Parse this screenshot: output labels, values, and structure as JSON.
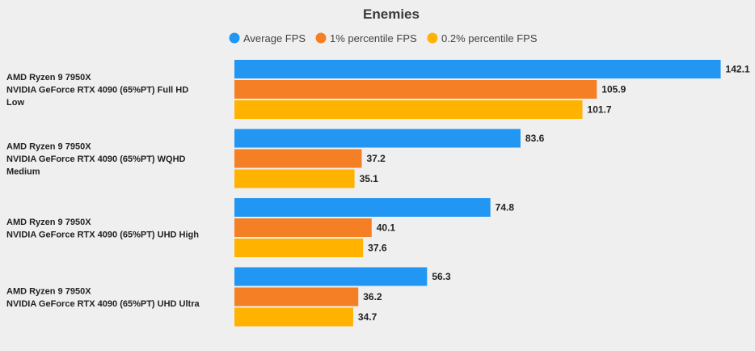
{
  "chart_data": {
    "type": "bar",
    "orientation": "horizontal",
    "title": "Enemies",
    "legend_position": "top",
    "categories": [
      [
        "AMD Ryzen 9 7950X",
        "NVIDIA GeForce RTX 4090 (65%PT) Full HD",
        "Low"
      ],
      [
        "AMD Ryzen 9 7950X",
        "NVIDIA GeForce RTX 4090 (65%PT) WQHD",
        "Medium"
      ],
      [
        "AMD Ryzen 9 7950X",
        "NVIDIA GeForce RTX 4090 (65%PT) UHD High"
      ],
      [
        "AMD Ryzen 9 7950X",
        "NVIDIA GeForce RTX 4090 (65%PT) UHD Ultra"
      ]
    ],
    "series": [
      {
        "name": "Average FPS",
        "color": "#2196f3",
        "values": [
          142.1,
          83.6,
          74.8,
          56.3
        ]
      },
      {
        "name": "1% percentile FPS",
        "color": "#f47f24",
        "values": [
          105.9,
          37.2,
          40.1,
          36.2
        ]
      },
      {
        "name": "0.2% percentile FPS",
        "color": "#ffb300",
        "values": [
          101.7,
          35.1,
          37.6,
          34.7
        ]
      }
    ],
    "xlim": [
      0,
      150
    ],
    "grid": false
  }
}
